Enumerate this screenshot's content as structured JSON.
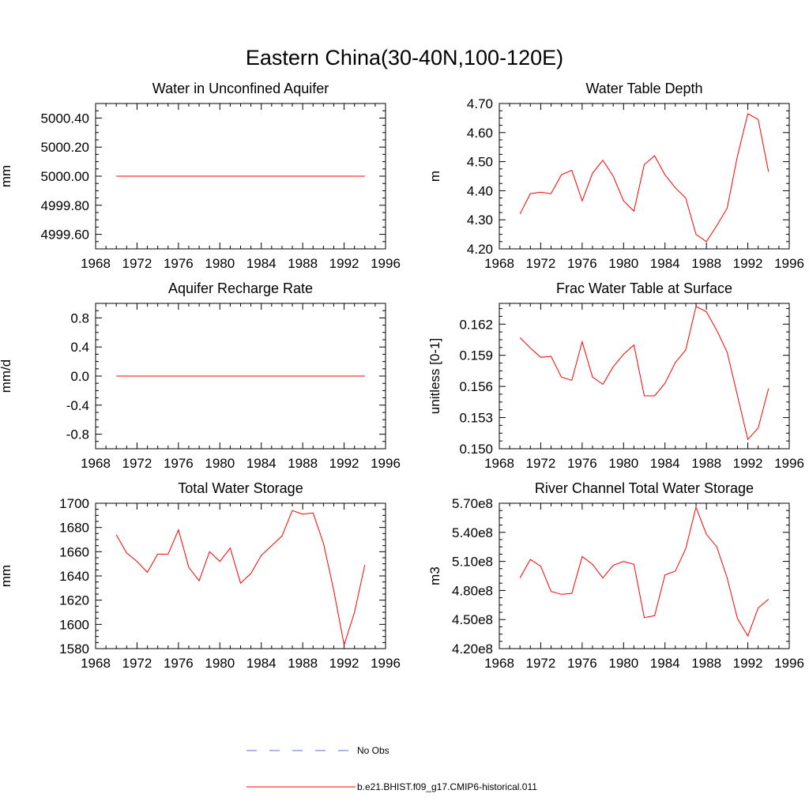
{
  "figure": {
    "title": "Eastern China(30-40N,100-120E)"
  },
  "colors": {
    "model_line": "#ff0000",
    "obs_line": "#5a6fd6",
    "axis": "#000000"
  },
  "legend": {
    "obs_label": "No Obs",
    "model_label": "b.e21.BHIST.f09_g17.CMIP6-historical.011"
  },
  "chart_data": [
    {
      "type": "line",
      "title": "Water in Unconfined Aquifer",
      "ylabel": "mm",
      "xlim": [
        1968,
        1996
      ],
      "xticks": [
        "1968",
        "1972",
        "1976",
        "1980",
        "1984",
        "1988",
        "1992",
        "1996"
      ],
      "ylim": [
        4999.5,
        5000.5
      ],
      "yticks": [
        "5000.40",
        "5000.20",
        "5000.00",
        "4999.80",
        "4999.60"
      ],
      "ytick_values": [
        5000.4,
        5000.2,
        5000.0,
        4999.8,
        4999.6
      ],
      "series": [
        {
          "x": [
            1970,
            1971,
            1972,
            1973,
            1974,
            1975,
            1976,
            1977,
            1978,
            1979,
            1980,
            1981,
            1982,
            1983,
            1984,
            1985,
            1986,
            1987,
            1988,
            1989,
            1990,
            1991,
            1992,
            1993,
            1994
          ],
          "values": [
            5000,
            5000,
            5000,
            5000,
            5000,
            5000,
            5000,
            5000,
            5000,
            5000,
            5000,
            5000,
            5000,
            5000,
            5000,
            5000,
            5000,
            5000,
            5000,
            5000,
            5000,
            5000,
            5000,
            5000,
            5000
          ]
        }
      ]
    },
    {
      "type": "line",
      "title": "Water Table Depth",
      "ylabel": "m",
      "xlim": [
        1968,
        1996
      ],
      "xticks": [
        "1968",
        "1972",
        "1976",
        "1980",
        "1984",
        "1988",
        "1992",
        "1996"
      ],
      "ylim": [
        4.2,
        4.7
      ],
      "yticks": [
        "4.70",
        "4.60",
        "4.50",
        "4.40",
        "4.30",
        "4.20"
      ],
      "ytick_values": [
        4.7,
        4.6,
        4.5,
        4.4,
        4.3,
        4.2
      ],
      "series": [
        {
          "x": [
            1970,
            1971,
            1972,
            1973,
            1974,
            1975,
            1976,
            1977,
            1978,
            1979,
            1980,
            1981,
            1982,
            1983,
            1984,
            1985,
            1986,
            1987,
            1988,
            1989,
            1990,
            1991,
            1992,
            1993,
            1994
          ],
          "values": [
            4.32,
            4.39,
            4.395,
            4.39,
            4.455,
            4.47,
            4.365,
            4.46,
            4.505,
            4.45,
            4.365,
            4.33,
            4.49,
            4.52,
            4.455,
            4.41,
            4.375,
            4.25,
            4.225,
            4.28,
            4.34,
            4.52,
            4.665,
            4.645,
            4.465
          ]
        }
      ]
    },
    {
      "type": "line",
      "title": "Aquifer Recharge Rate",
      "ylabel": "mm/d",
      "xlim": [
        1968,
        1996
      ],
      "xticks": [
        "1968",
        "1972",
        "1976",
        "1980",
        "1984",
        "1988",
        "1992",
        "1996"
      ],
      "ylim": [
        -1.0,
        1.0
      ],
      "yticks": [
        "0.8",
        "0.4",
        "0.0",
        "-0.4",
        "-0.8"
      ],
      "ytick_values": [
        0.8,
        0.4,
        0.0,
        -0.4,
        -0.8
      ],
      "series": [
        {
          "x": [
            1970,
            1971,
            1972,
            1973,
            1974,
            1975,
            1976,
            1977,
            1978,
            1979,
            1980,
            1981,
            1982,
            1983,
            1984,
            1985,
            1986,
            1987,
            1988,
            1989,
            1990,
            1991,
            1992,
            1993,
            1994
          ],
          "values": [
            0,
            0,
            0,
            0,
            0,
            0,
            0,
            0,
            0,
            0,
            0,
            0,
            0,
            0,
            0,
            0,
            0,
            0,
            0,
            0,
            0,
            0,
            0,
            0,
            0
          ]
        }
      ]
    },
    {
      "type": "line",
      "title": "Frac Water Table at Surface",
      "ylabel": "unitless [0-1]",
      "xlim": [
        1968,
        1996
      ],
      "xticks": [
        "1968",
        "1972",
        "1976",
        "1980",
        "1984",
        "1988",
        "1992",
        "1996"
      ],
      "ylim": [
        0.15,
        0.164
      ],
      "yticks": [
        "0.162",
        "0.159",
        "0.156",
        "0.153",
        "0.150"
      ],
      "ytick_values": [
        0.162,
        0.159,
        0.156,
        0.153,
        0.15
      ],
      "series": [
        {
          "x": [
            1970,
            1971,
            1972,
            1973,
            1974,
            1975,
            1976,
            1977,
            1978,
            1979,
            1980,
            1981,
            1982,
            1983,
            1984,
            1985,
            1986,
            1987,
            1988,
            1989,
            1990,
            1991,
            1992,
            1993,
            1994
          ],
          "values": [
            0.1607,
            0.1597,
            0.1588,
            0.1589,
            0.1569,
            0.1566,
            0.1603,
            0.1569,
            0.1562,
            0.1579,
            0.1591,
            0.16,
            0.1551,
            0.1551,
            0.1563,
            0.1583,
            0.1595,
            0.1637,
            0.1632,
            0.1614,
            0.1593,
            0.1551,
            0.1509,
            0.152,
            0.1558
          ]
        }
      ]
    },
    {
      "type": "line",
      "title": "Total Water Storage",
      "ylabel": "mm",
      "xlim": [
        1968,
        1996
      ],
      "xticks": [
        "1968",
        "1972",
        "1976",
        "1980",
        "1984",
        "1988",
        "1992",
        "1996"
      ],
      "ylim": [
        1580,
        1700
      ],
      "yticks": [
        "1700",
        "1680",
        "1660",
        "1640",
        "1620",
        "1600",
        "1580"
      ],
      "ytick_values": [
        1700,
        1680,
        1660,
        1640,
        1620,
        1600,
        1580
      ],
      "series": [
        {
          "x": [
            1970,
            1971,
            1972,
            1973,
            1974,
            1975,
            1976,
            1977,
            1978,
            1979,
            1980,
            1981,
            1982,
            1983,
            1984,
            1985,
            1986,
            1987,
            1988,
            1989,
            1990,
            1991,
            1992,
            1993,
            1994
          ],
          "values": [
            1674,
            1659,
            1652,
            1643,
            1658,
            1658,
            1678,
            1647,
            1636,
            1660,
            1652,
            1663,
            1634,
            1642,
            1657,
            1665,
            1673,
            1694,
            1691,
            1692,
            1667,
            1628,
            1583,
            1610,
            1649
          ]
        }
      ]
    },
    {
      "type": "line",
      "title": "River Channel Total Water Storage",
      "ylabel": "m3",
      "xlim": [
        1968,
        1996
      ],
      "xticks": [
        "1968",
        "1972",
        "1976",
        "1980",
        "1984",
        "1988",
        "1992",
        "1996"
      ],
      "ylim": [
        420000000,
        570000000
      ],
      "yticks": [
        "5.70e8",
        "5.40e8",
        "5.10e8",
        "4.80e8",
        "4.50e8",
        "4.20e8"
      ],
      "ytick_values": [
        570000000,
        540000000,
        510000000,
        480000000,
        450000000,
        420000000
      ],
      "series": [
        {
          "x": [
            1970,
            1971,
            1972,
            1973,
            1974,
            1975,
            1976,
            1977,
            1978,
            1979,
            1980,
            1981,
            1982,
            1983,
            1984,
            1985,
            1986,
            1987,
            1988,
            1989,
            1990,
            1991,
            1992,
            1993,
            1994
          ],
          "values": [
            493000000,
            512000000,
            505000000,
            479000000,
            476000000,
            477000000,
            515000000,
            507000000,
            493000000,
            506000000,
            510000000,
            507000000,
            452000000,
            454000000,
            496000000,
            500000000,
            523000000,
            566000000,
            538000000,
            525000000,
            493000000,
            451000000,
            433000000,
            462000000,
            471000000
          ]
        }
      ]
    }
  ]
}
